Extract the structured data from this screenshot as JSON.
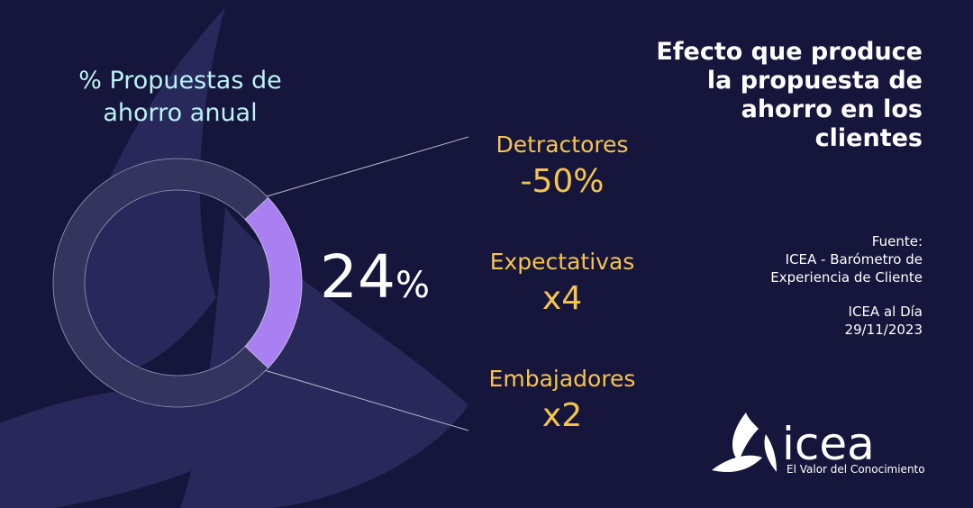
{
  "chart_data": {
    "type": "donut",
    "title": "% Propuestas de ahorro anual",
    "values": [
      24
    ],
    "value_labels": [
      "24"
    ],
    "unit": "%",
    "color": "#a97ff2",
    "track_color": "#34355f",
    "annotations": [
      {
        "label": "Detractores",
        "value": "-50%"
      },
      {
        "label": "Expectativas",
        "value": "x4"
      },
      {
        "label": "Embajadores",
        "value": "x2"
      }
    ]
  },
  "side_title": "Efecto que produce la propuesta de ahorro en los clientes",
  "source": {
    "heading": "Fuente:",
    "text": "ICEA - Barómetro de Experiencia de Cliente",
    "publication": "ICEA al Día",
    "date": "29/11/2023"
  },
  "logo": {
    "name": "icea",
    "tagline": "El Valor del Conocimiento"
  }
}
